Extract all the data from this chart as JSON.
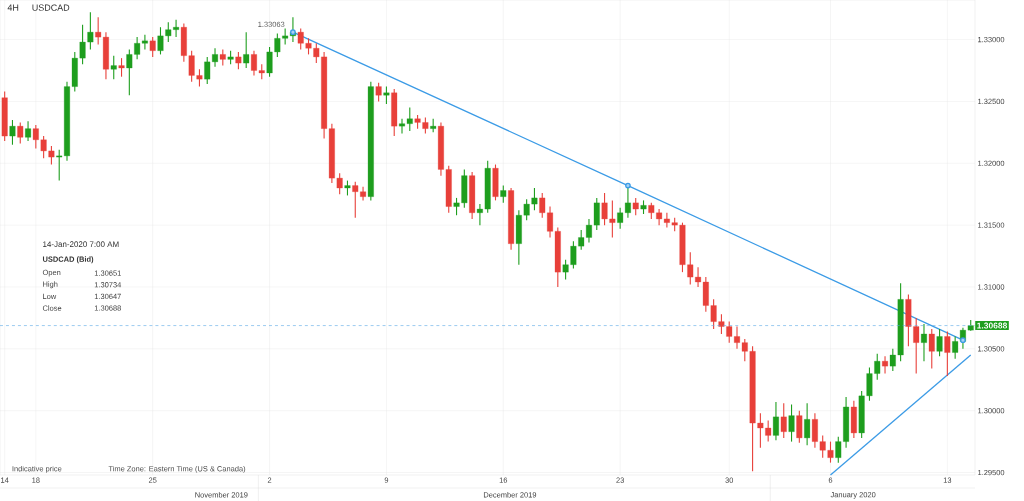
{
  "chart_data": {
    "type": "candlestick",
    "title": "USDCAD",
    "subtitle": "4H",
    "categories": [
      "14",
      null,
      null,
      null,
      "18",
      null,
      null,
      null,
      null,
      null,
      null,
      null,
      null,
      null,
      null,
      null,
      null,
      null,
      null,
      "25",
      null,
      null,
      null,
      null,
      null,
      null,
      null,
      null,
      null,
      null,
      null,
      null,
      null,
      null,
      "2",
      null,
      null,
      null,
      null,
      null,
      null,
      null,
      null,
      null,
      null,
      null,
      null,
      null,
      null,
      "9",
      null,
      null,
      null,
      null,
      null,
      null,
      null,
      null,
      null,
      null,
      null,
      null,
      null,
      null,
      "16",
      null,
      null,
      null,
      null,
      null,
      null,
      null,
      null,
      null,
      null,
      null,
      null,
      null,
      null,
      "23",
      null,
      null,
      null,
      null,
      null,
      null,
      null,
      null,
      null,
      null,
      null,
      null,
      null,
      "30",
      null,
      null,
      null,
      null,
      null,
      null,
      null,
      null,
      null,
      null,
      null,
      null,
      "6",
      null,
      null,
      null,
      null,
      null,
      null,
      null,
      null,
      null,
      null,
      null,
      null,
      null,
      null,
      "13",
      null,
      null,
      null
    ],
    "ohlc": [
      [
        1.3253,
        1.3258,
        1.3218,
        1.3222
      ],
      [
        1.3222,
        1.3235,
        1.3215,
        1.323
      ],
      [
        1.323,
        1.3233,
        1.3216,
        1.3221
      ],
      [
        1.3221,
        1.3234,
        1.3218,
        1.3228
      ],
      [
        1.3228,
        1.3231,
        1.3212,
        1.3219
      ],
      [
        1.3219,
        1.3222,
        1.3204,
        1.321
      ],
      [
        1.321,
        1.3214,
        1.3199,
        1.3205
      ],
      [
        1.3205,
        1.3211,
        1.3186,
        1.3206
      ],
      [
        1.3206,
        1.3266,
        1.3202,
        1.3262
      ],
      [
        1.3262,
        1.329,
        1.3258,
        1.3285
      ],
      [
        1.3285,
        1.3312,
        1.328,
        1.3298
      ],
      [
        1.3298,
        1.3322,
        1.3292,
        1.3306
      ],
      [
        1.3306,
        1.3318,
        1.3296,
        1.3302
      ],
      [
        1.3302,
        1.3306,
        1.3268,
        1.3276
      ],
      [
        1.3276,
        1.3287,
        1.3268,
        1.3279
      ],
      [
        1.3279,
        1.3285,
        1.327,
        1.3277
      ],
      [
        1.3277,
        1.3292,
        1.3255,
        1.3288
      ],
      [
        1.3288,
        1.3302,
        1.3284,
        1.3297
      ],
      [
        1.3297,
        1.3304,
        1.3292,
        1.3299
      ],
      [
        1.3299,
        1.3302,
        1.3286,
        1.3291
      ],
      [
        1.3291,
        1.331,
        1.3288,
        1.3303
      ],
      [
        1.3303,
        1.3314,
        1.3298,
        1.3308
      ],
      [
        1.3308,
        1.3316,
        1.3302,
        1.331
      ],
      [
        1.331,
        1.3313,
        1.3282,
        1.3287
      ],
      [
        1.3287,
        1.3291,
        1.3266,
        1.3271
      ],
      [
        1.3271,
        1.3276,
        1.3262,
        1.3268
      ],
      [
        1.3268,
        1.3286,
        1.3264,
        1.3282
      ],
      [
        1.3282,
        1.3293,
        1.3278,
        1.3288
      ],
      [
        1.3288,
        1.3292,
        1.3279,
        1.3284
      ],
      [
        1.3284,
        1.3291,
        1.328,
        1.3286
      ],
      [
        1.3286,
        1.329,
        1.3276,
        1.3281
      ],
      [
        1.3281,
        1.3306,
        1.3277,
        1.3288
      ],
      [
        1.3288,
        1.3291,
        1.3271,
        1.3275
      ],
      [
        1.3275,
        1.328,
        1.3268,
        1.3273
      ],
      [
        1.3273,
        1.3294,
        1.327,
        1.329
      ],
      [
        1.329,
        1.3305,
        1.3286,
        1.3301
      ],
      [
        1.3301,
        1.3309,
        1.3296,
        1.3303
      ],
      [
        1.3303,
        1.3318,
        1.3298,
        1.3306
      ],
      [
        1.3306,
        1.3309,
        1.3292,
        1.3297
      ],
      [
        1.3297,
        1.3301,
        1.3288,
        1.3293
      ],
      [
        1.3293,
        1.3297,
        1.3281,
        1.3286
      ],
      [
        1.3286,
        1.329,
        1.322,
        1.3228
      ],
      [
        1.3228,
        1.3232,
        1.3184,
        1.3188
      ],
      [
        1.3188,
        1.3192,
        1.3175,
        1.318
      ],
      [
        1.318,
        1.3186,
        1.3174,
        1.3182
      ],
      [
        1.3182,
        1.3185,
        1.3156,
        1.3177
      ],
      [
        1.3177,
        1.3181,
        1.317,
        1.3173
      ],
      [
        1.3173,
        1.3266,
        1.317,
        1.3262
      ],
      [
        1.3262,
        1.3265,
        1.325,
        1.3255
      ],
      [
        1.3255,
        1.3262,
        1.3248,
        1.3257
      ],
      [
        1.3257,
        1.326,
        1.3222,
        1.323
      ],
      [
        1.323,
        1.3236,
        1.3224,
        1.3232
      ],
      [
        1.3232,
        1.3245,
        1.3226,
        1.3236
      ],
      [
        1.3236,
        1.3239,
        1.3228,
        1.3233
      ],
      [
        1.3233,
        1.3237,
        1.3224,
        1.3228
      ],
      [
        1.3228,
        1.3236,
        1.3225,
        1.323
      ],
      [
        1.323,
        1.3233,
        1.319,
        1.3195
      ],
      [
        1.3195,
        1.3198,
        1.316,
        1.3165
      ],
      [
        1.3165,
        1.3172,
        1.3158,
        1.3168
      ],
      [
        1.3168,
        1.3195,
        1.3164,
        1.319
      ],
      [
        1.319,
        1.3193,
        1.3155,
        1.316
      ],
      [
        1.316,
        1.3167,
        1.315,
        1.3163
      ],
      [
        1.3163,
        1.3202,
        1.316,
        1.3196
      ],
      [
        1.3196,
        1.3199,
        1.317,
        1.3173
      ],
      [
        1.3173,
        1.3182,
        1.3168,
        1.3178
      ],
      [
        1.3178,
        1.318,
        1.313,
        1.3135
      ],
      [
        1.3135,
        1.3162,
        1.3118,
        1.3158
      ],
      [
        1.3158,
        1.3171,
        1.3154,
        1.3167
      ],
      [
        1.3167,
        1.318,
        1.3162,
        1.3172
      ],
      [
        1.3172,
        1.3176,
        1.3156,
        1.316
      ],
      [
        1.316,
        1.3165,
        1.314,
        1.3145
      ],
      [
        1.3145,
        1.3148,
        1.31,
        1.3112
      ],
      [
        1.3112,
        1.3122,
        1.3106,
        1.3118
      ],
      [
        1.3118,
        1.3137,
        1.3115,
        1.3133
      ],
      [
        1.3133,
        1.3146,
        1.313,
        1.314
      ],
      [
        1.314,
        1.3155,
        1.3136,
        1.315
      ],
      [
        1.315,
        1.3172,
        1.3146,
        1.3168
      ],
      [
        1.3168,
        1.3176,
        1.315,
        1.3155
      ],
      [
        1.3155,
        1.317,
        1.314,
        1.3152
      ],
      [
        1.3152,
        1.3164,
        1.3147,
        1.316
      ],
      [
        1.316,
        1.318,
        1.3156,
        1.3168
      ],
      [
        1.3168,
        1.3172,
        1.3158,
        1.3163
      ],
      [
        1.3163,
        1.317,
        1.3159,
        1.3166
      ],
      [
        1.3166,
        1.3168,
        1.3155,
        1.316
      ],
      [
        1.316,
        1.3163,
        1.315,
        1.3155
      ],
      [
        1.3155,
        1.316,
        1.3148,
        1.3152
      ],
      [
        1.3152,
        1.3156,
        1.3145,
        1.315
      ],
      [
        1.315,
        1.3152,
        1.3112,
        1.3118
      ],
      [
        1.3118,
        1.3128,
        1.3102,
        1.3108
      ],
      [
        1.3108,
        1.3116,
        1.31,
        1.3104
      ],
      [
        1.3104,
        1.3108,
        1.308,
        1.3085
      ],
      [
        1.3085,
        1.309,
        1.3066,
        1.3072
      ],
      [
        1.3072,
        1.3078,
        1.3062,
        1.3068
      ],
      [
        1.3068,
        1.3072,
        1.3055,
        1.306
      ],
      [
        1.306,
        1.3068,
        1.305,
        1.3055
      ],
      [
        1.3055,
        1.3058,
        1.304,
        1.3048
      ],
      [
        1.3048,
        1.3052,
        1.2951,
        1.299
      ],
      [
        1.299,
        1.2998,
        1.297,
        1.2986
      ],
      [
        1.2986,
        1.2992,
        1.2975,
        1.298
      ],
      [
        1.298,
        1.3007,
        1.2976,
        1.2995
      ],
      [
        1.2995,
        1.3006,
        1.2978,
        1.2983
      ],
      [
        1.2983,
        1.3005,
        1.2975,
        1.2996
      ],
      [
        1.2996,
        1.3,
        1.2974,
        1.2978
      ],
      [
        1.2978,
        1.3006,
        1.2972,
        1.2993
      ],
      [
        1.2993,
        1.2998,
        1.297,
        1.2975
      ],
      [
        1.2975,
        1.298,
        1.2962,
        1.2968
      ],
      [
        1.2968,
        1.2975,
        1.2958,
        1.2962
      ],
      [
        1.2962,
        1.2979,
        1.2958,
        1.2975
      ],
      [
        1.2975,
        1.3011,
        1.297,
        1.3003
      ],
      [
        1.3003,
        1.3008,
        1.2978,
        1.2982
      ],
      [
        1.2982,
        1.3016,
        1.2978,
        1.3012
      ],
      [
        1.3012,
        1.3035,
        1.3008,
        1.303
      ],
      [
        1.303,
        1.3046,
        1.3025,
        1.304
      ],
      [
        1.304,
        1.3044,
        1.303,
        1.3036
      ],
      [
        1.3036,
        1.305,
        1.3032,
        1.3045
      ],
      [
        1.3045,
        1.3103,
        1.304,
        1.309
      ],
      [
        1.309,
        1.3094,
        1.3052,
        1.3068
      ],
      [
        1.3068,
        1.3075,
        1.303,
        1.3055
      ],
      [
        1.3055,
        1.307,
        1.304,
        1.3062
      ],
      [
        1.3062,
        1.3066,
        1.3034,
        1.3048
      ],
      [
        1.3048,
        1.3066,
        1.3044,
        1.306
      ],
      [
        1.306,
        1.3064,
        1.3028,
        1.3047
      ],
      [
        1.3047,
        1.306,
        1.3042,
        1.3056
      ],
      [
        1.3056,
        1.3067,
        1.305,
        1.30651
      ],
      [
        1.30651,
        1.30734,
        1.30647,
        1.30688
      ]
    ],
    "series": [
      {
        "type": "line",
        "values": [
          null,
          null,
          null,
          null,
          null,
          null,
          null,
          null,
          null,
          null,
          null,
          null,
          null,
          null,
          null,
          null,
          null,
          null,
          null,
          null,
          null,
          null,
          null,
          null,
          null,
          null,
          null,
          null,
          null,
          null,
          null,
          null,
          null,
          null,
          null,
          null,
          null,
          1.3306,
          null,
          null,
          null,
          null,
          null,
          null,
          null,
          null,
          null,
          null,
          null,
          null,
          null,
          null,
          null,
          null,
          null,
          null,
          null,
          null,
          null,
          null,
          null,
          null,
          null,
          null,
          null,
          null,
          null,
          null,
          null,
          null,
          null,
          null,
          null,
          null,
          null,
          null,
          null,
          null,
          null,
          null,
          1.3182,
          null,
          null,
          null,
          null,
          null,
          null,
          null,
          null,
          null,
          null,
          null,
          null,
          null,
          null,
          null,
          null,
          null,
          null,
          null,
          null,
          null,
          null,
          null,
          null,
          null,
          null,
          null,
          null,
          null,
          null,
          null,
          null,
          null,
          null,
          null,
          null,
          null,
          null,
          null,
          null,
          null,
          null,
          1.3057,
          null
        ],
        "color": "#3b9be6",
        "marker": "circle"
      },
      {
        "type": "line",
        "values": [
          null,
          null,
          null,
          null,
          null,
          null,
          null,
          null,
          null,
          null,
          null,
          null,
          null,
          null,
          null,
          null,
          null,
          null,
          null,
          null,
          null,
          null,
          null,
          null,
          null,
          null,
          null,
          null,
          null,
          null,
          null,
          null,
          null,
          null,
          null,
          null,
          null,
          null,
          null,
          null,
          null,
          null,
          null,
          null,
          null,
          null,
          null,
          null,
          null,
          null,
          null,
          null,
          null,
          null,
          null,
          null,
          null,
          null,
          null,
          null,
          null,
          null,
          null,
          null,
          null,
          null,
          null,
          null,
          null,
          null,
          null,
          null,
          null,
          null,
          null,
          null,
          null,
          null,
          null,
          null,
          null,
          null,
          null,
          null,
          null,
          null,
          null,
          null,
          null,
          null,
          null,
          null,
          null,
          null,
          null,
          null,
          null,
          null,
          null,
          null,
          null,
          null,
          null,
          null,
          null,
          null,
          1.2948,
          null,
          null,
          null,
          null,
          null,
          null,
          null,
          null,
          null,
          null,
          null,
          null,
          null,
          null,
          null,
          null,
          null,
          1.3045
        ],
        "color": "#3b9be6"
      }
    ],
    "ylim": [
      1.2948,
      1.3332
    ],
    "yticks": [
      {
        "value": 1.295,
        "label": "1.29500"
      },
      {
        "value": 1.3,
        "label": "1.30000"
      },
      {
        "value": 1.305,
        "label": "1.30500"
      },
      {
        "value": 1.31,
        "label": "1.31000"
      },
      {
        "value": 1.315,
        "label": "1.31500"
      },
      {
        "value": 1.32,
        "label": "1.32000"
      },
      {
        "value": 1.325,
        "label": "1.32500"
      },
      {
        "value": 1.33,
        "label": "1.33000"
      }
    ],
    "grid": true,
    "ref_lines": [
      {
        "axis": "y",
        "value": 1.30688,
        "label": "1.30688",
        "color": "#5aa9e6",
        "line_style": "dashed"
      }
    ],
    "annotations": [
      "November 2019",
      "December 2019",
      "January 2020",
      "Indicative price",
      "Time Zone: Eastern Time (US & Canada)",
      "14-Jan-2020 7:00 AM",
      "USDCAD (Bid)",
      "Open",
      "1.30651",
      "High",
      "1.30734",
      "Low",
      "1.30647",
      "Close",
      "1.30688",
      "1.33063"
    ]
  }
}
